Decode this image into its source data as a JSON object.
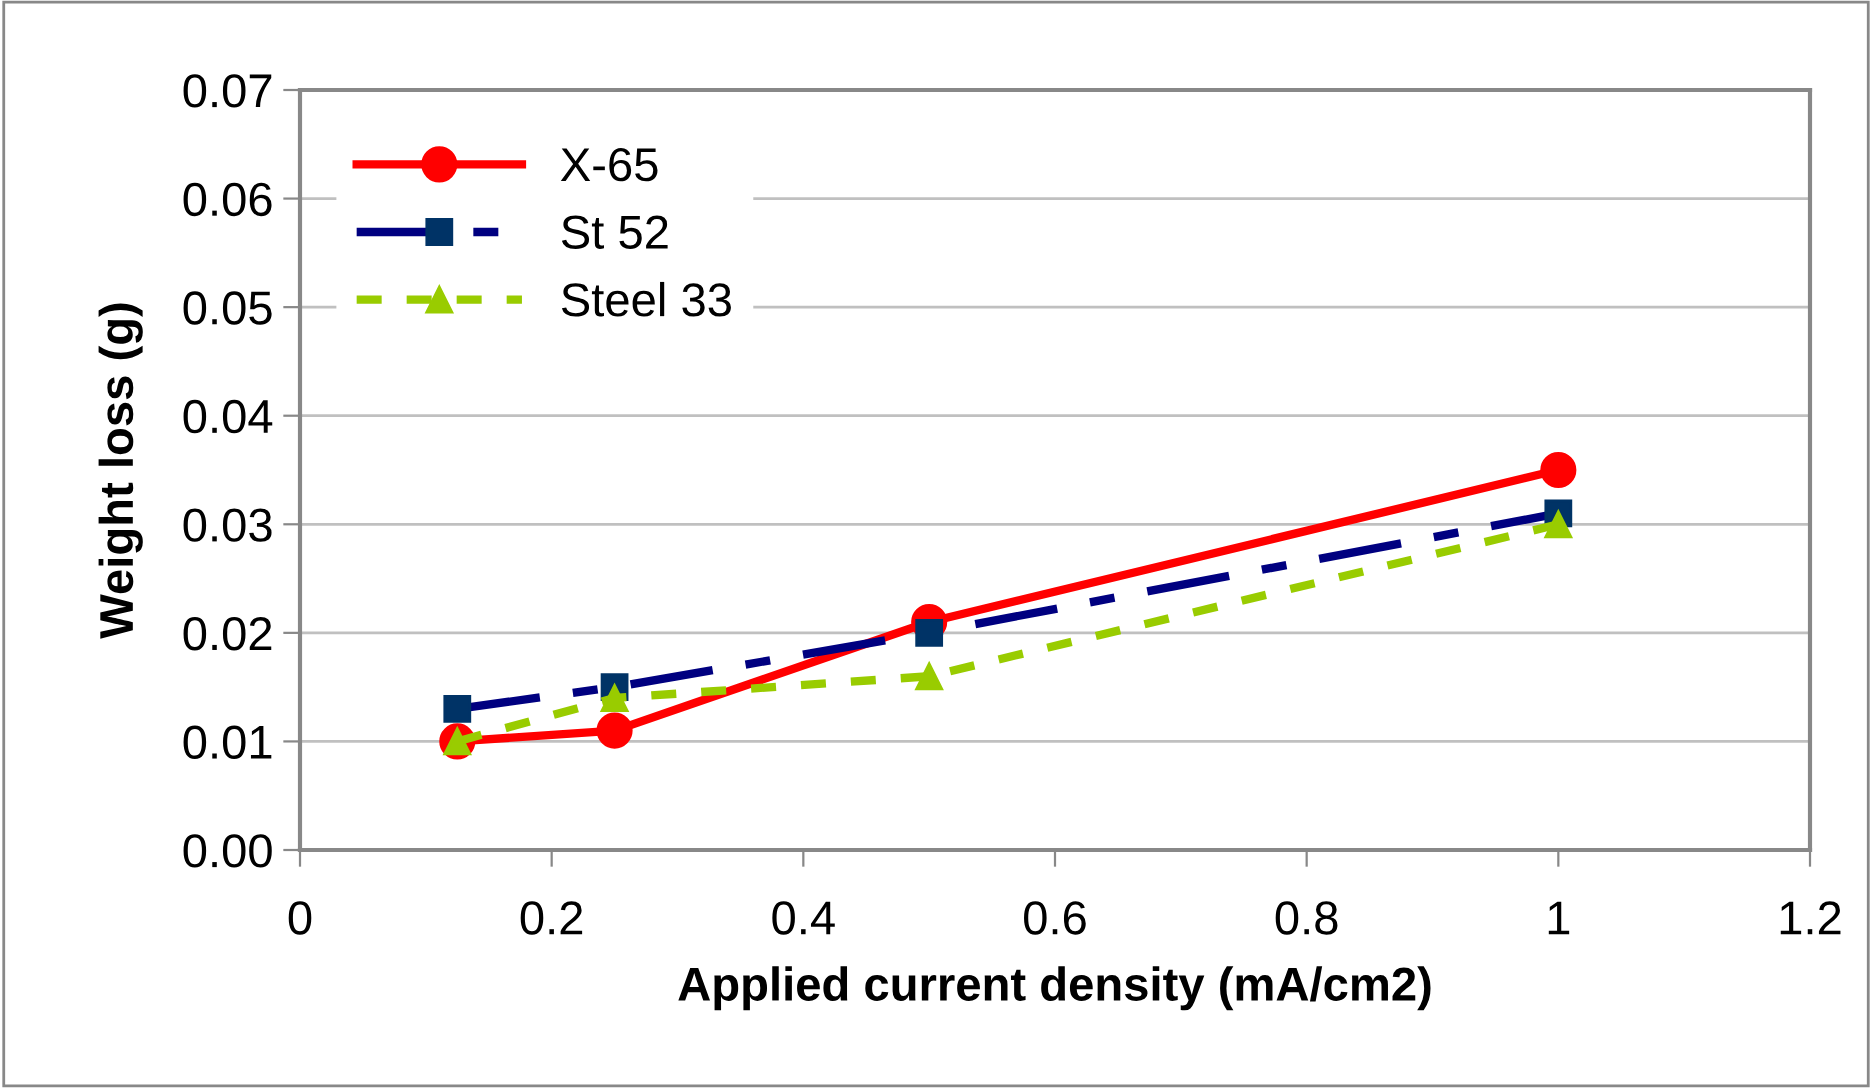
{
  "chart_data": {
    "type": "line",
    "xlabel": "Applied current density (mA/cm2)",
    "ylabel": "Weight loss (g)",
    "xlim": [
      0,
      1.2
    ],
    "xticks": [
      {
        "value": 0,
        "label": "0"
      },
      0.2,
      0.4,
      0.6,
      0.8,
      1,
      1.2
    ],
    "ylim": [
      0,
      0.07
    ],
    "yticks": [
      {
        "value": 0,
        "label": "0.00"
      },
      {
        "value": 0.01,
        "label": "0.01"
      },
      {
        "value": 0.02,
        "label": "0.02"
      },
      {
        "value": 0.03,
        "label": "0.03"
      },
      {
        "value": 0.04,
        "label": "0.04"
      },
      {
        "value": 0.05,
        "label": "0.05"
      },
      {
        "value": 0.06,
        "label": "0.06"
      },
      {
        "value": 0.07,
        "label": "0.07"
      }
    ],
    "grid": "y",
    "legend": "top left",
    "x": [
      0.125,
      0.25,
      0.5,
      1
    ],
    "series": [
      {
        "name": "X-65",
        "color": "#ff0000",
        "marker": "circle",
        "line_style": "solid",
        "values": [
          0.01,
          0.011,
          0.021,
          0.035
        ]
      },
      {
        "name": "St 52",
        "color": "#000080",
        "marker": "square",
        "line_style": "dashdot",
        "values": [
          0.013,
          0.015,
          0.02,
          0.031
        ]
      },
      {
        "name": "Steel 33",
        "color": "#99cc00",
        "marker": "triangle",
        "line_style": "dotted",
        "values": [
          0.01,
          0.014,
          0.016,
          0.03
        ]
      }
    ]
  }
}
